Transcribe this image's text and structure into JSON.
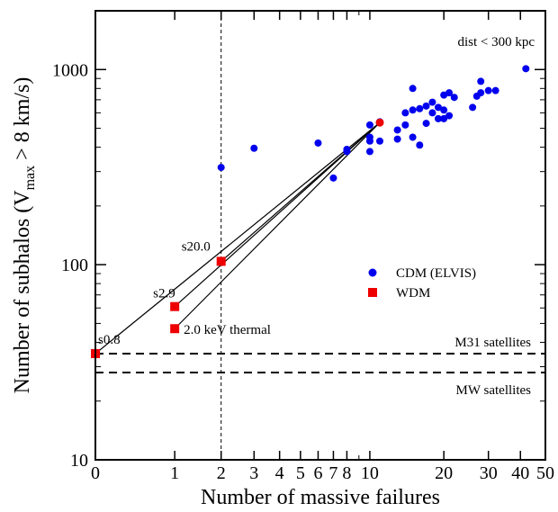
{
  "chart_data": {
    "type": "scatter",
    "xlabel": "Number of massive failures",
    "ylabel_parts": {
      "main": "Number of subhalos (V",
      "sub": "max",
      "tail": " > 8 km/s)"
    },
    "x_scale": "log(x+1)",
    "y_scale": "log",
    "xlim": [
      0,
      50
    ],
    "ylim": [
      10,
      2000
    ],
    "x_ticks": [
      {
        "v": 0,
        "label": "0"
      },
      {
        "v": 1,
        "label": "1"
      },
      {
        "v": 2,
        "label": "2"
      },
      {
        "v": 3,
        "label": "3"
      },
      {
        "v": 4,
        "label": "4"
      },
      {
        "v": 5,
        "label": "5"
      },
      {
        "v": 6,
        "label": "6"
      },
      {
        "v": 7,
        "label": "7"
      },
      {
        "v": 8,
        "label": "8"
      },
      {
        "v": 10,
        "label": "10"
      },
      {
        "v": 20,
        "label": "20"
      },
      {
        "v": 30,
        "label": "30"
      },
      {
        "v": 40,
        "label": "40"
      },
      {
        "v": 50,
        "label": "50"
      }
    ],
    "x_minor_ticks": [
      9
    ],
    "y_ticks": [
      {
        "v": 10,
        "label": "10"
      },
      {
        "v": 100,
        "label": "100"
      },
      {
        "v": 1000,
        "label": "1000"
      }
    ],
    "y_minor_ticks": [
      20,
      30,
      40,
      50,
      60,
      70,
      80,
      90,
      200,
      300,
      400,
      500,
      600,
      700,
      800,
      900,
      2000
    ],
    "annotation_top": "dist < 300 kpc",
    "vertical_line_x": 2,
    "hlines": [
      {
        "y": 35,
        "label": "M31 satellites"
      },
      {
        "y": 28,
        "label": "MW satellites"
      }
    ],
    "series": [
      {
        "name": "CDM (ELVIS)",
        "color": "#0000ee",
        "marker": "circle",
        "points": [
          [
            2,
            315
          ],
          [
            3,
            395
          ],
          [
            6,
            420
          ],
          [
            7,
            278
          ],
          [
            8,
            380
          ],
          [
            8,
            390
          ],
          [
            10,
            380
          ],
          [
            10,
            430
          ],
          [
            10,
            450
          ],
          [
            10,
            520
          ],
          [
            11,
            430
          ],
          [
            11,
            540
          ],
          [
            13,
            440
          ],
          [
            13,
            490
          ],
          [
            14,
            520
          ],
          [
            14,
            600
          ],
          [
            15,
            450
          ],
          [
            15,
            620
          ],
          [
            15,
            800
          ],
          [
            16,
            410
          ],
          [
            16,
            630
          ],
          [
            17,
            530
          ],
          [
            17,
            650
          ],
          [
            18,
            600
          ],
          [
            18,
            680
          ],
          [
            19,
            560
          ],
          [
            19,
            640
          ],
          [
            20,
            560
          ],
          [
            20,
            620
          ],
          [
            20,
            740
          ],
          [
            21,
            580
          ],
          [
            21,
            760
          ],
          [
            22,
            720
          ],
          [
            26,
            640
          ],
          [
            27,
            730
          ],
          [
            28,
            760
          ],
          [
            28,
            870
          ],
          [
            30,
            780
          ],
          [
            32,
            780
          ],
          [
            42,
            1010
          ]
        ]
      },
      {
        "name": "WDM",
        "color": "#ee0000",
        "marker": "square",
        "points": [
          {
            "x": 0,
            "y": 35,
            "label": "s0.8"
          },
          {
            "x": 1,
            "y": 47,
            "label": "2.0 keV thermal"
          },
          {
            "x": 1,
            "y": 61,
            "label": "s2.9"
          },
          {
            "x": 2,
            "y": 104,
            "label": "s20.0"
          }
        ]
      }
    ],
    "highlight_point": {
      "x": 11,
      "y": 535,
      "color": "#ee0000"
    },
    "connecting_lines_from": [
      11,
      535
    ],
    "legend": {
      "placement": "center-right",
      "entries": [
        "CDM (ELVIS)",
        "WDM"
      ]
    }
  }
}
